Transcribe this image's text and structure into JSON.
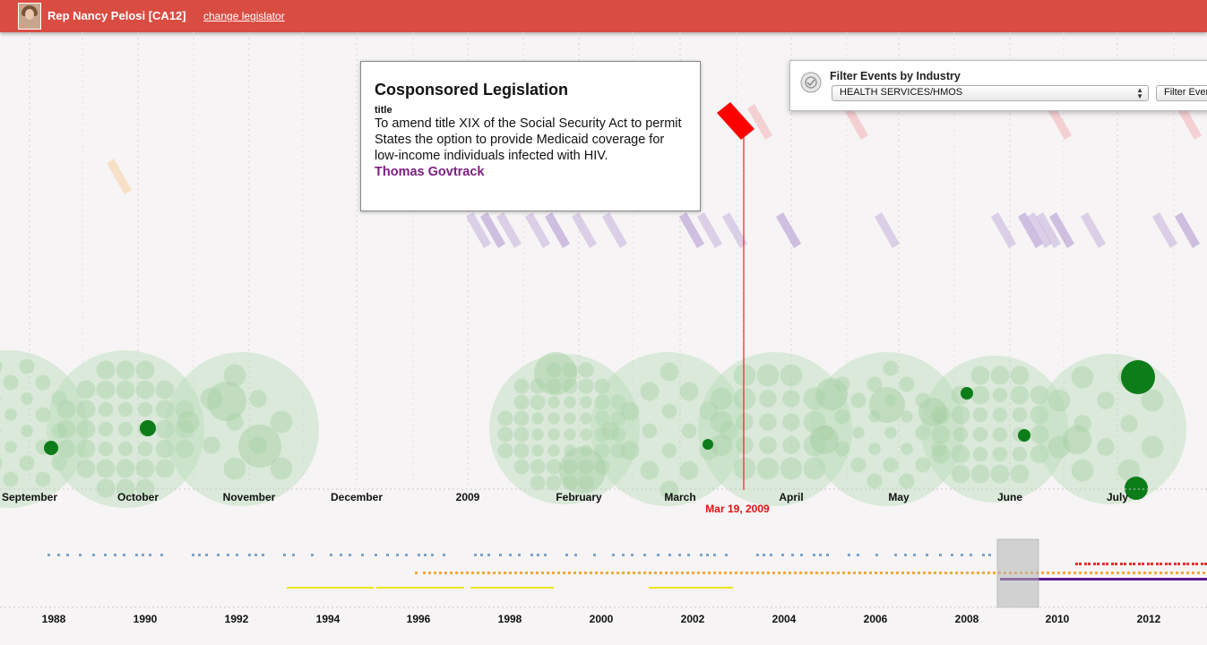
{
  "header": {
    "legislator_name": "Rep Nancy Pelosi [CA12]",
    "change_link": "change legislator"
  },
  "tooltip": {
    "heading": "Cosponsored Legislation",
    "field_label": "title",
    "text": "To amend title XIX of the Social Security Act to permit States the option to provide Medicaid coverage for low-income individuals infected with HIV.",
    "source": "Thomas Govtrack"
  },
  "filter": {
    "title": "Filter Events by Industry",
    "selected_industry": "HEALTH SERVICES/HMOS",
    "button_label": "Filter Events"
  },
  "timeline": {
    "month_labels": [
      "September",
      "October",
      "November",
      "December",
      "2009",
      "February",
      "March",
      "April",
      "May",
      "June",
      "July"
    ],
    "current_date_label": "Mar 19, 2009"
  },
  "overview": {
    "year_labels": [
      "1988",
      "1990",
      "1992",
      "1994",
      "1996",
      "1998",
      "2000",
      "2002",
      "2004",
      "2006",
      "2008",
      "2010",
      "2012"
    ]
  },
  "colors": {
    "header": "#d94c42",
    "marker": "#ff0000",
    "bubble": "#b9dcb7",
    "bubble_highlight": "#0d7d1a",
    "bill": "#b9a2d4",
    "link": "#7d1f84"
  }
}
